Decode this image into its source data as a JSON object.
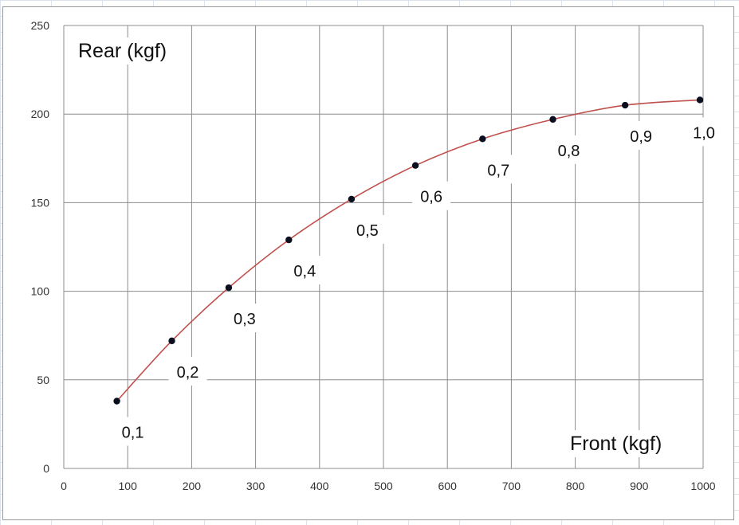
{
  "chart_data": {
    "type": "scatter",
    "title": "",
    "xlabel": "Front (kgf)",
    "ylabel": "Rear (kgf)",
    "xlim": [
      0,
      1000
    ],
    "ylim": [
      0,
      250
    ],
    "xticks": [
      "0",
      "100",
      "200",
      "300",
      "400",
      "500",
      "600",
      "700",
      "800",
      "900",
      "1000"
    ],
    "yticks": [
      "0",
      "50",
      "100",
      "150",
      "200",
      "250"
    ],
    "grid": true,
    "legend": "none",
    "smooth_line": true,
    "line_color": "#c0504d",
    "marker_color": "#0a0f1f",
    "series": [
      {
        "points": [
          {
            "x": 83,
            "y": 38,
            "label": "0,1"
          },
          {
            "x": 169,
            "y": 72,
            "label": "0,2"
          },
          {
            "x": 258,
            "y": 102,
            "label": "0,3"
          },
          {
            "x": 352,
            "y": 129,
            "label": "0,4"
          },
          {
            "x": 450,
            "y": 152,
            "label": "0,5"
          },
          {
            "x": 550,
            "y": 171,
            "label": "0,6"
          },
          {
            "x": 655,
            "y": 186,
            "label": "0,7"
          },
          {
            "x": 765,
            "y": 197,
            "label": "0,8"
          },
          {
            "x": 878,
            "y": 205,
            "label": "0,9"
          },
          {
            "x": 995,
            "y": 208,
            "label": "1,0"
          }
        ]
      }
    ]
  }
}
